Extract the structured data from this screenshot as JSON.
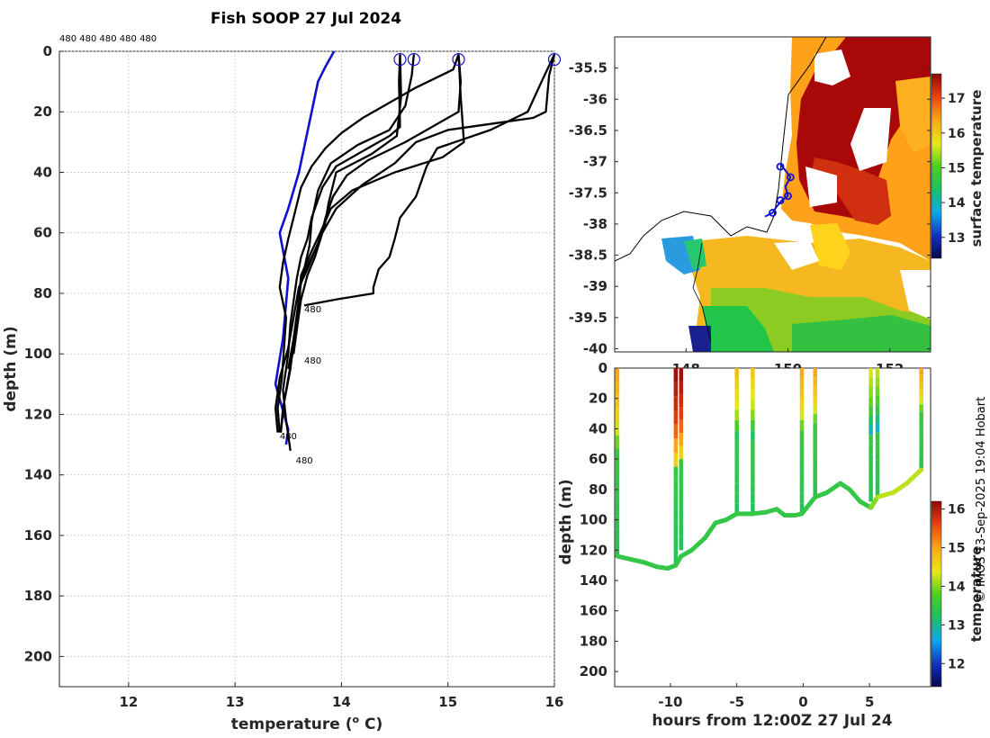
{
  "title": "Fish SOOP 27 Jul 2024",
  "copyright": "© IMOS 13-Sep-2025 19:04 Hobart",
  "chart_data": [
    {
      "type": "line",
      "name": "temperature-profiles",
      "xlabel": "temperature (",
      "xlabel_sup": "o",
      "xlabel_end": " C)",
      "ylabel": "depth (m)",
      "xlim": [
        11.35,
        16.0
      ],
      "ylim": [
        0,
        210
      ],
      "xticks": [
        "12",
        "13",
        "14",
        "15",
        "16"
      ],
      "yticks": [
        "0",
        "20",
        "40",
        "60",
        "80",
        "100",
        "120",
        "140",
        "160",
        "180",
        "200"
      ],
      "top_labels": "480 480 480 480 480",
      "point_labels": [
        {
          "text": "480",
          "t": 13.65,
          "d": 85
        },
        {
          "text": "480",
          "t": 13.65,
          "d": 102
        },
        {
          "text": "480",
          "t": 13.42,
          "d": 127
        },
        {
          "text": "480",
          "t": 13.57,
          "d": 135
        }
      ],
      "start_markers": [
        {
          "t": 14.55,
          "d": 1.5
        },
        {
          "t": 14.68,
          "d": 1.5
        },
        {
          "t": 15.1,
          "d": 1.5
        },
        {
          "t": 16.0,
          "d": 1.5
        }
      ],
      "climatology": {
        "name": "climatology",
        "color": "#1010d0",
        "points": [
          [
            13.93,
            0
          ],
          [
            13.85,
            5
          ],
          [
            13.78,
            10
          ],
          [
            13.72,
            20
          ],
          [
            13.6,
            40
          ],
          [
            13.5,
            52
          ],
          [
            13.42,
            60
          ],
          [
            13.5,
            75
          ],
          [
            13.45,
            95
          ],
          [
            13.38,
            110
          ],
          [
            13.5,
            125
          ],
          [
            13.48,
            130
          ]
        ]
      },
      "series": [
        {
          "name": "cast-1",
          "points": [
            [
              14.55,
              1
            ],
            [
              14.54,
              10
            ],
            [
              14.55,
              25
            ],
            [
              14.45,
              28
            ],
            [
              14.2,
              33
            ],
            [
              13.95,
              38
            ],
            [
              13.82,
              45
            ],
            [
              13.72,
              55
            ],
            [
              13.68,
              62
            ],
            [
              13.62,
              68
            ],
            [
              13.58,
              75
            ],
            [
              13.56,
              80
            ],
            [
              13.52,
              90
            ],
            [
              13.5,
              100
            ],
            [
              13.45,
              112
            ],
            [
              13.48,
              122
            ],
            [
              13.52,
              132
            ]
          ]
        },
        {
          "name": "cast-2",
          "points": [
            [
              14.68,
              1
            ],
            [
              14.66,
              8
            ],
            [
              14.6,
              18
            ],
            [
              14.45,
              26
            ],
            [
              14.15,
              31
            ],
            [
              13.9,
              37
            ],
            [
              13.78,
              46
            ],
            [
              13.72,
              56
            ],
            [
              13.7,
              64
            ],
            [
              13.65,
              72
            ],
            [
              13.6,
              80
            ],
            [
              13.58,
              92
            ],
            [
              13.52,
              104
            ],
            [
              13.46,
              116
            ],
            [
              13.43,
              126
            ]
          ]
        },
        {
          "name": "cast-3",
          "points": [
            [
              14.55,
              1
            ],
            [
              14.56,
              15
            ],
            [
              14.52,
              28
            ],
            [
              14.28,
              34
            ],
            [
              13.95,
              40
            ],
            [
              13.88,
              50
            ],
            [
              13.84,
              58
            ],
            [
              13.75,
              66
            ],
            [
              13.68,
              72
            ],
            [
              13.6,
              78
            ],
            [
              13.55,
              88
            ],
            [
              13.5,
              98
            ],
            [
              13.42,
              108
            ],
            [
              13.38,
              118
            ],
            [
              13.4,
              126
            ]
          ]
        },
        {
          "name": "cast-4",
          "points": [
            [
              15.1,
              1
            ],
            [
              15.12,
              15
            ],
            [
              15.15,
              30
            ],
            [
              14.95,
              35
            ],
            [
              14.5,
              40
            ],
            [
              14.1,
              46
            ],
            [
              13.9,
              52
            ],
            [
              13.8,
              60
            ],
            [
              13.72,
              66
            ],
            [
              13.62,
              74
            ],
            [
              13.6,
              82
            ],
            [
              13.55,
              95
            ],
            [
              13.52,
              105
            ],
            [
              13.45,
              118
            ],
            [
              13.43,
              126
            ]
          ]
        },
        {
          "name": "cast-5",
          "points": [
            [
              15.1,
              1
            ],
            [
              15.12,
              10
            ],
            [
              15.1,
              20
            ],
            [
              14.6,
              30
            ],
            [
              14.25,
              36
            ],
            [
              14.05,
              41
            ],
            [
              13.92,
              48
            ],
            [
              13.85,
              55
            ],
            [
              13.8,
              62
            ],
            [
              13.72,
              68
            ],
            [
              13.62,
              75
            ],
            [
              13.6,
              85
            ],
            [
              13.55,
              95
            ],
            [
              13.5,
              105
            ]
          ]
        },
        {
          "name": "cast-6",
          "points": [
            [
              16.0,
              1
            ],
            [
              15.95,
              8
            ],
            [
              15.92,
              20
            ],
            [
              15.8,
              22
            ],
            [
              15.4,
              24
            ],
            [
              15.0,
              26
            ],
            [
              14.7,
              30
            ],
            [
              14.5,
              37
            ],
            [
              14.2,
              44
            ],
            [
              13.95,
              52
            ],
            [
              13.82,
              60
            ],
            [
              13.75,
              68
            ],
            [
              13.68,
              74
            ],
            [
              13.62,
              82
            ],
            [
              13.58,
              92
            ],
            [
              13.55,
              100
            ]
          ]
        },
        {
          "name": "cast-7",
          "points": [
            [
              16.0,
              1
            ],
            [
              15.88,
              10
            ],
            [
              15.75,
              20
            ],
            [
              15.4,
              26
            ],
            [
              14.9,
              32
            ],
            [
              14.8,
              38
            ],
            [
              14.7,
              48
            ],
            [
              14.55,
              55
            ],
            [
              14.5,
              62
            ],
            [
              14.45,
              68
            ],
            [
              14.35,
              72
            ],
            [
              14.3,
              78
            ],
            [
              14.3,
              80
            ],
            [
              13.95,
              82
            ],
            [
              13.65,
              84
            ]
          ]
        },
        {
          "name": "cast-8",
          "points": [
            [
              15.1,
              1
            ],
            [
              15.05,
              6
            ],
            [
              14.7,
              12
            ],
            [
              14.4,
              18
            ],
            [
              14.2,
              22
            ],
            [
              14.0,
              27
            ],
            [
              13.85,
              32
            ],
            [
              13.72,
              38
            ],
            [
              13.62,
              45
            ],
            [
              13.55,
              55
            ],
            [
              13.5,
              62
            ],
            [
              13.45,
              70
            ],
            [
              13.42,
              78
            ],
            [
              13.48,
              88
            ],
            [
              13.46,
              98
            ],
            [
              13.44,
              108
            ],
            [
              13.4,
              118
            ],
            [
              13.42,
              126
            ]
          ]
        }
      ]
    },
    {
      "type": "heatmap",
      "name": "surface-temperature-map",
      "xlim": [
        146.6,
        152.8
      ],
      "ylim": [
        -40.05,
        -35.0
      ],
      "xticks": [
        "148",
        "150",
        "152"
      ],
      "yticks": [
        "-35.5",
        "-36",
        "-36.5",
        "-37",
        "-37.5",
        "-38",
        "-38.5",
        "-39",
        "-39.5",
        "-40"
      ],
      "colorbar_label": "surface temperature",
      "colorbar_ticks": [
        "13",
        "14",
        "15",
        "16",
        "17"
      ],
      "colorbar_range": [
        12.4,
        17.7
      ],
      "track": [
        [
          149.85,
          -37.05
        ],
        [
          149.93,
          -37.12
        ],
        [
          150.05,
          -37.25
        ],
        [
          149.95,
          -37.4
        ],
        [
          150.0,
          -37.55
        ],
        [
          149.88,
          -37.62
        ],
        [
          149.78,
          -37.72
        ],
        [
          149.7,
          -37.82
        ],
        [
          149.55,
          -37.88
        ]
      ],
      "track_markers": [
        [
          149.85,
          -37.08
        ],
        [
          150.05,
          -37.25
        ],
        [
          150.0,
          -37.55
        ],
        [
          149.85,
          -37.62
        ],
        [
          149.7,
          -37.82
        ]
      ]
    },
    {
      "type": "scatter",
      "name": "depth-time-section",
      "xlabel": "hours from 12:00Z 27 Jul 24",
      "ylabel": "depth (m)",
      "xlim": [
        -14.2,
        9.6
      ],
      "ylim": [
        0,
        210
      ],
      "xticks": [
        "-10",
        "-5",
        "0",
        "5"
      ],
      "yticks": [
        "0",
        "20",
        "40",
        "60",
        "80",
        "100",
        "120",
        "140",
        "160",
        "180",
        "200"
      ],
      "colorbar_label": "temperature",
      "colorbar_ticks": [
        "12",
        "13",
        "14",
        "15",
        "16"
      ],
      "colorbar_range": [
        11.4,
        16.2
      ],
      "casts": [
        {
          "t": -14.0,
          "bottom": 124,
          "surface_temp": 15.0
        },
        {
          "t": -9.6,
          "bottom": 130,
          "surface_temp": 16.1
        },
        {
          "t": -9.2,
          "bottom": 120,
          "surface_temp": 16.1
        },
        {
          "t": -5.0,
          "bottom": 96,
          "surface_temp": 14.8
        },
        {
          "t": -3.8,
          "bottom": 96,
          "surface_temp": 14.7
        },
        {
          "t": -0.1,
          "bottom": 96,
          "surface_temp": 15.0
        },
        {
          "t": 0.9,
          "bottom": 85,
          "surface_temp": 15.0
        },
        {
          "t": 5.1,
          "bottom": 88,
          "surface_temp": 14.3
        },
        {
          "t": 5.6,
          "bottom": 85,
          "surface_temp": 14.2
        },
        {
          "t": 8.9,
          "bottom": 67,
          "surface_temp": 15.0
        }
      ],
      "bottom_track": [
        [
          -14.0,
          124
        ],
        [
          -13.0,
          126
        ],
        [
          -12.0,
          128
        ],
        [
          -11.0,
          131
        ],
        [
          -10.2,
          132
        ],
        [
          -9.6,
          130
        ],
        [
          -9.2,
          124
        ],
        [
          -8.4,
          120
        ],
        [
          -7.4,
          112
        ],
        [
          -6.6,
          102
        ],
        [
          -5.8,
          100
        ],
        [
          -5.0,
          96
        ],
        [
          -3.8,
          96
        ],
        [
          -2.8,
          95
        ],
        [
          -2.0,
          93
        ],
        [
          -1.4,
          97
        ],
        [
          -0.6,
          97
        ],
        [
          -0.1,
          96
        ],
        [
          0.9,
          85
        ],
        [
          1.8,
          82
        ],
        [
          2.8,
          76
        ],
        [
          3.5,
          80
        ],
        [
          4.3,
          88
        ],
        [
          5.1,
          92
        ],
        [
          5.6,
          85
        ],
        [
          6.8,
          82
        ],
        [
          7.8,
          76
        ],
        [
          8.9,
          67
        ]
      ]
    }
  ]
}
